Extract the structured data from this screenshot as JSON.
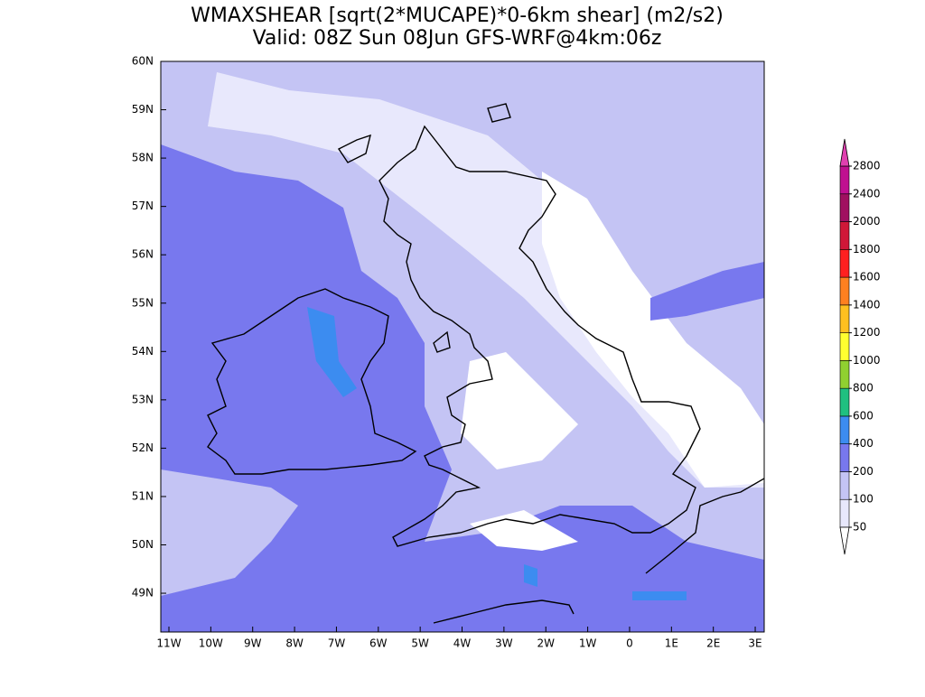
{
  "header": {
    "title": "WMAXSHEAR [sqrt(2*MUCAPE)*0-6km shear] (m2/s2)",
    "subtitle": "Valid: 08Z Sun 08Jun GFS-WRF@4km:06z"
  },
  "map": {
    "lat_ticks": [
      "60N",
      "59N",
      "58N",
      "57N",
      "56N",
      "55N",
      "54N",
      "53N",
      "52N",
      "51N",
      "50N",
      "49N"
    ],
    "lon_ticks": [
      "11W",
      "10W",
      "9W",
      "8W",
      "7W",
      "6W",
      "5W",
      "4W",
      "3W",
      "2W",
      "1W",
      "0",
      "1E",
      "2E",
      "3E"
    ]
  },
  "colorbar": {
    "levels": [
      50,
      100,
      200,
      400,
      600,
      800,
      1000,
      1200,
      1400,
      1600,
      1800,
      2000,
      2400,
      2800
    ],
    "colors": [
      "#e8e8fc",
      "#c4c4f4",
      "#7878ee",
      "#3c8cf0",
      "#20c080",
      "#90d030",
      "#ffff30",
      "#ffc020",
      "#ff8020",
      "#ff2020",
      "#d01838",
      "#a01060",
      "#c01090"
    ],
    "under_color": "#ffffff",
    "over_color": "#e040b0"
  }
}
